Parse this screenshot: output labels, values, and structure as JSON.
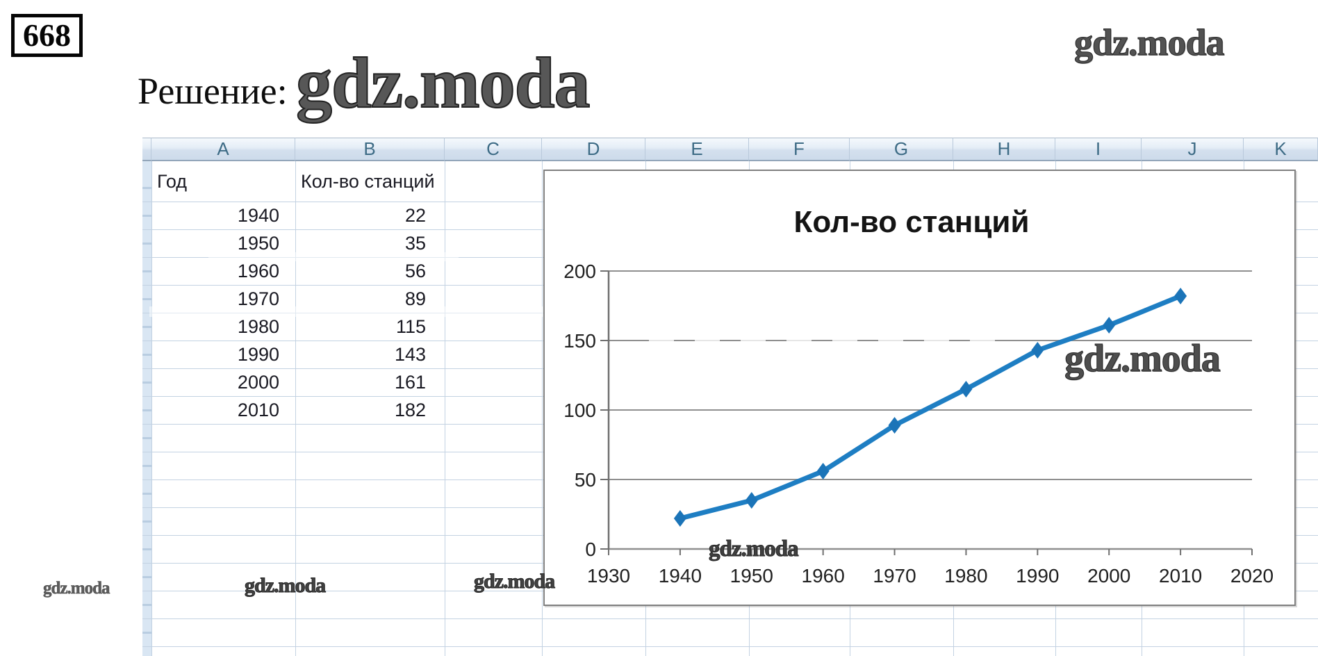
{
  "page": {
    "problem_number": "668",
    "solution_label": "Решение:"
  },
  "watermarks": {
    "brand": "gdz.moda",
    "after_solution": "gdz.moda",
    "top_right": "gdz.moda",
    "chart_middle": "gdz.moda",
    "chart_axis": "gdz.moda",
    "bottom_left": "gdz.moda",
    "bottom_center": "gdz.moda",
    "bottom_right": "gdz.moda"
  },
  "spreadsheet": {
    "column_headers": [
      "A",
      "B",
      "C",
      "D",
      "E",
      "F",
      "G",
      "H",
      "I",
      "J",
      "K"
    ],
    "table": {
      "headers": [
        "Год",
        "Кол-во станций"
      ],
      "rows": [
        {
          "year": "1940",
          "value": "22"
        },
        {
          "year": "1950",
          "value": "35"
        },
        {
          "year": "1960",
          "value": "56"
        },
        {
          "year": "1970",
          "value": "89"
        },
        {
          "year": "1980",
          "value": "115"
        },
        {
          "year": "1990",
          "value": "143"
        },
        {
          "year": "2000",
          "value": "161"
        },
        {
          "year": "2010",
          "value": "182"
        }
      ]
    }
  },
  "chart_data": {
    "type": "line",
    "title": "Кол-во станций",
    "series": [
      {
        "name": "Кол-во станций",
        "x": [
          1940,
          1950,
          1960,
          1970,
          1980,
          1990,
          2000,
          2010
        ],
        "values": [
          22,
          35,
          56,
          89,
          115,
          143,
          161,
          182
        ]
      }
    ],
    "xticks": [
      1930,
      1940,
      1950,
      1960,
      1970,
      1980,
      1990,
      2000,
      2010,
      2020
    ],
    "yticks": [
      0,
      50,
      100,
      150,
      200
    ],
    "xlim": [
      1930,
      2020
    ],
    "ylim": [
      0,
      200
    ],
    "xlabel": "",
    "ylabel": "",
    "grid": true,
    "legend": false,
    "line_color": "#1e7ec3",
    "marker_color": "#1b74b8",
    "marker": "diamond",
    "grid_color": "#8f8f8f",
    "axis_color": "#6f6f6f",
    "tick_label_color": "#202020",
    "title_color": "#141414"
  }
}
